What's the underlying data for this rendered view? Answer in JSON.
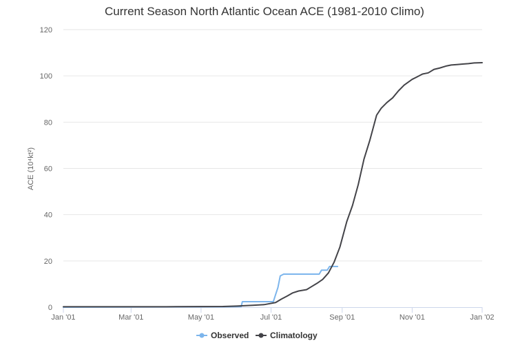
{
  "chart_data": {
    "type": "line",
    "title": "Current Season North Atlantic Ocean ACE (1981-2010 Climo)",
    "ylabel": "ACE (10⁴kt²)",
    "xlabel": "",
    "ylim": [
      0,
      120
    ],
    "xlim": [
      "2001-01-01",
      "2002-01-01"
    ],
    "yticks": [
      0,
      20,
      40,
      60,
      80,
      100,
      120
    ],
    "xticks": [
      {
        "date": "2001-01-01",
        "label": "Jan '01"
      },
      {
        "date": "2001-03-01",
        "label": "Mar '01"
      },
      {
        "date": "2001-05-01",
        "label": "May '01"
      },
      {
        "date": "2001-07-01",
        "label": "Jul '01"
      },
      {
        "date": "2001-09-01",
        "label": "Sep '01"
      },
      {
        "date": "2001-11-01",
        "label": "Nov '01"
      },
      {
        "date": "2002-01-01",
        "label": "Jan '02"
      }
    ],
    "grid": true,
    "legend_position": "bottom-center",
    "series": [
      {
        "name": "Observed",
        "color": "#7cb5ec",
        "points": [
          [
            "2001-01-01",
            0
          ],
          [
            "2001-05-20",
            0.2
          ],
          [
            "2001-06-05",
            0.3
          ],
          [
            "2001-06-06",
            2.4
          ],
          [
            "2001-07-03",
            2.4
          ],
          [
            "2001-07-05",
            5.5
          ],
          [
            "2001-07-07",
            8.5
          ],
          [
            "2001-07-09",
            13.5
          ],
          [
            "2001-07-12",
            14.3
          ],
          [
            "2001-07-20",
            14.3
          ],
          [
            "2001-08-05",
            14.3
          ],
          [
            "2001-08-12",
            14.3
          ],
          [
            "2001-08-14",
            16.0
          ],
          [
            "2001-08-19",
            16.0
          ],
          [
            "2001-08-21",
            17.6
          ],
          [
            "2001-08-28",
            17.6
          ]
        ]
      },
      {
        "name": "Climatology",
        "color": "#434348",
        "points": [
          [
            "2001-01-01",
            0.2
          ],
          [
            "2001-02-01",
            0.2
          ],
          [
            "2001-03-01",
            0.2
          ],
          [
            "2001-04-01",
            0.2
          ],
          [
            "2001-05-01",
            0.25
          ],
          [
            "2001-05-20",
            0.3
          ],
          [
            "2001-06-01",
            0.5
          ],
          [
            "2001-06-15",
            0.8
          ],
          [
            "2001-06-25",
            1.1
          ],
          [
            "2001-07-05",
            2.0
          ],
          [
            "2001-07-10",
            3.5
          ],
          [
            "2001-07-15",
            4.8
          ],
          [
            "2001-07-20",
            6.2
          ],
          [
            "2001-07-25",
            7.0
          ],
          [
            "2001-08-01",
            7.6
          ],
          [
            "2001-08-05",
            8.8
          ],
          [
            "2001-08-10",
            10.3
          ],
          [
            "2001-08-15",
            12.0
          ],
          [
            "2001-08-20",
            14.8
          ],
          [
            "2001-08-25",
            19.5
          ],
          [
            "2001-08-30",
            26.0
          ],
          [
            "2001-09-05",
            37.0
          ],
          [
            "2001-09-10",
            44.0
          ],
          [
            "2001-09-15",
            53.0
          ],
          [
            "2001-09-20",
            64.0
          ],
          [
            "2001-09-25",
            72.0
          ],
          [
            "2001-10-01",
            83.0
          ],
          [
            "2001-10-05",
            86.0
          ],
          [
            "2001-10-10",
            88.5
          ],
          [
            "2001-10-15",
            90.5
          ],
          [
            "2001-10-20",
            93.5
          ],
          [
            "2001-10-25",
            96.0
          ],
          [
            "2001-11-01",
            98.5
          ],
          [
            "2001-11-05",
            99.5
          ],
          [
            "2001-11-10",
            100.8
          ],
          [
            "2001-11-15",
            101.3
          ],
          [
            "2001-11-20",
            102.8
          ],
          [
            "2001-11-25",
            103.4
          ],
          [
            "2001-12-01",
            104.3
          ],
          [
            "2001-12-05",
            104.7
          ],
          [
            "2001-12-10",
            104.9
          ],
          [
            "2001-12-15",
            105.1
          ],
          [
            "2001-12-20",
            105.3
          ],
          [
            "2001-12-25",
            105.6
          ],
          [
            "2002-01-01",
            105.7
          ]
        ]
      }
    ]
  }
}
